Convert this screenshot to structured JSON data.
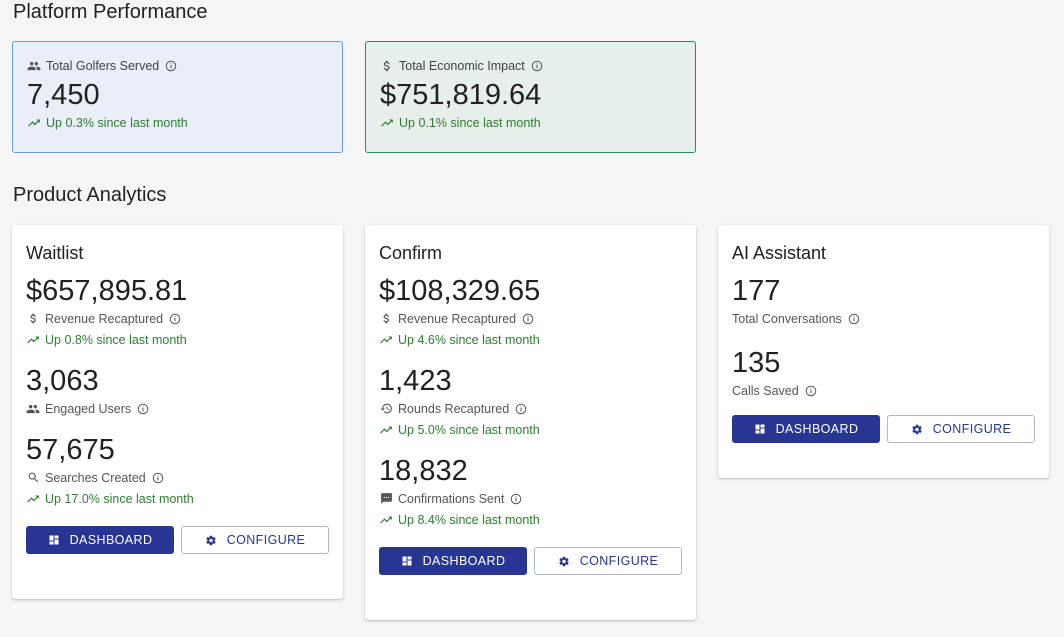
{
  "platform": {
    "title": "Platform Performance",
    "kpis": [
      {
        "label": "Total Golfers Served",
        "value": "7,450",
        "trend": "Up 0.3% since last month",
        "icon": "people-icon"
      },
      {
        "label": "Total Economic Impact",
        "value": "$751,819.64",
        "trend": "Up 0.1% since last month",
        "icon": "dollar-icon"
      }
    ]
  },
  "analytics": {
    "title": "Product Analytics",
    "waitlist": {
      "title": "Waitlist",
      "metrics": [
        {
          "value": "$657,895.81",
          "label": "Revenue Recaptured",
          "trend": "Up 0.8% since last month"
        },
        {
          "value": "3,063",
          "label": "Engaged Users"
        },
        {
          "value": "57,675",
          "label": "Searches Created",
          "trend": "Up 17.0% since last month"
        }
      ]
    },
    "confirm": {
      "title": "Confirm",
      "metrics": [
        {
          "value": "$108,329.65",
          "label": "Revenue Recaptured",
          "trend": "Up 4.6% since last month"
        },
        {
          "value": "1,423",
          "label": "Rounds Recaptured",
          "trend": "Up 5.0% since last month"
        },
        {
          "value": "18,832",
          "label": "Confirmations Sent",
          "trend": "Up 8.4% since last month"
        }
      ]
    },
    "assistant": {
      "title": "AI Assistant",
      "metrics": [
        {
          "value": "177",
          "label": "Total Conversations"
        },
        {
          "value": "135",
          "label": "Calls Saved"
        }
      ]
    },
    "buttons": {
      "dashboard": "DASHBOARD",
      "configure": "CONFIGURE"
    }
  },
  "colors": {
    "primary": "#283593",
    "trend_green": "#2e7d32",
    "kpi_blue_bg": "#e9eef7",
    "kpi_green_bg": "#e6efe9"
  }
}
